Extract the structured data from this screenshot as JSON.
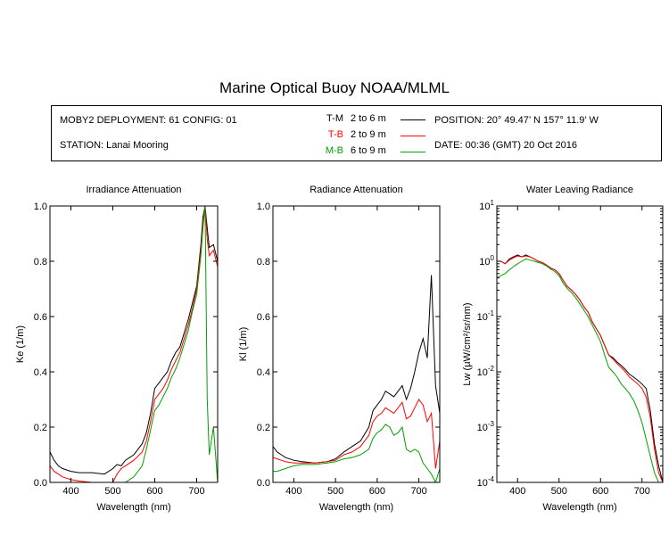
{
  "page": {
    "title": "Marine Optical Buoy NOAA/MLML"
  },
  "info": {
    "deployment": "MOBY2 DEPLOYMENT: 61 CONFIG: 01",
    "station": "STATION: Lanai Mooring",
    "position": "POSITION: 20° 49.47’ N   157° 11.9’ W",
    "date": "DATE: 00:36 (GMT) 20 Oct 2016",
    "legend": [
      {
        "code": "T-M",
        "range": "2 to 6  m",
        "color": "#000000"
      },
      {
        "code": "T-B",
        "range": "2 to 9  m",
        "color": "#ff0000"
      },
      {
        "code": "M-B",
        "range": "6 to 9  m",
        "color": "#00a000"
      }
    ]
  },
  "chart_data": [
    {
      "type": "line",
      "title": "Irradiance Attenuation",
      "xlabel": "Wavelength (nm)",
      "ylabel": "Ke  (1/m)",
      "xlim": [
        350,
        750
      ],
      "ylim": [
        0,
        1.0
      ],
      "xticks": [
        400,
        500,
        600,
        700
      ],
      "yticks": [
        0.0,
        0.2,
        0.4,
        0.6,
        0.8,
        1.0
      ],
      "ytick_labels": [
        "0.0",
        "0.2",
        "0.4",
        "0.6",
        "0.8",
        "1.0"
      ],
      "x": [
        350,
        360,
        370,
        380,
        400,
        420,
        450,
        480,
        500,
        510,
        520,
        530,
        550,
        570,
        580,
        590,
        600,
        610,
        620,
        630,
        640,
        650,
        660,
        670,
        680,
        690,
        700,
        710,
        715,
        720,
        725,
        730,
        740,
        750
      ],
      "series": [
        {
          "name": "T-M",
          "color": "#000000",
          "values": [
            0.11,
            0.08,
            0.06,
            0.05,
            0.04,
            0.035,
            0.035,
            0.03,
            0.05,
            0.065,
            0.06,
            0.08,
            0.1,
            0.14,
            0.18,
            0.25,
            0.34,
            0.36,
            0.38,
            0.4,
            0.44,
            0.47,
            0.49,
            0.54,
            0.59,
            0.65,
            0.71,
            0.86,
            0.96,
            1.0,
            0.92,
            0.85,
            0.86,
            0.8
          ]
        },
        {
          "name": "T-B",
          "color": "#ff0000",
          "values": [
            0.06,
            0.04,
            0.03,
            0.02,
            0.01,
            0.005,
            0.0,
            0.0,
            0.0,
            0.03,
            0.05,
            0.06,
            0.08,
            0.11,
            0.15,
            0.22,
            0.3,
            0.32,
            0.34,
            0.37,
            0.41,
            0.44,
            0.47,
            0.52,
            0.57,
            0.63,
            0.7,
            0.84,
            0.94,
            1.0,
            0.88,
            0.82,
            0.84,
            0.78
          ]
        },
        {
          "name": "M-B",
          "color": "#00a000",
          "values": [
            0.0,
            0.0,
            0.0,
            0.0,
            0.0,
            0.0,
            0.0,
            0.0,
            0.0,
            0.0,
            0.0,
            0.0,
            0.02,
            0.06,
            0.12,
            0.19,
            0.26,
            0.28,
            0.31,
            0.34,
            0.38,
            0.41,
            0.45,
            0.5,
            0.55,
            0.62,
            0.68,
            0.82,
            0.92,
            1.0,
            0.3,
            0.1,
            0.2,
            0.0
          ]
        }
      ]
    },
    {
      "type": "line",
      "title": "Radiance Attenuation",
      "xlabel": "Wavelength (nm)",
      "ylabel": "Kl  (1/m)",
      "xlim": [
        350,
        750
      ],
      "ylim": [
        0,
        1.0
      ],
      "xticks": [
        400,
        500,
        600,
        700
      ],
      "yticks": [
        0.0,
        0.2,
        0.4,
        0.6,
        0.8,
        1.0
      ],
      "ytick_labels": [
        "0.0",
        "0.2",
        "0.4",
        "0.6",
        "0.8",
        "1.0"
      ],
      "x": [
        350,
        360,
        370,
        380,
        400,
        420,
        450,
        480,
        500,
        520,
        540,
        560,
        580,
        590,
        600,
        610,
        620,
        630,
        640,
        650,
        660,
        670,
        680,
        690,
        700,
        710,
        720,
        730,
        740,
        750
      ],
      "series": [
        {
          "name": "T-M",
          "color": "#000000",
          "values": [
            0.13,
            0.11,
            0.1,
            0.09,
            0.08,
            0.075,
            0.07,
            0.075,
            0.085,
            0.11,
            0.13,
            0.15,
            0.2,
            0.26,
            0.28,
            0.3,
            0.33,
            0.32,
            0.31,
            0.33,
            0.35,
            0.3,
            0.34,
            0.4,
            0.47,
            0.52,
            0.45,
            0.75,
            0.35,
            0.25
          ]
        },
        {
          "name": "T-B",
          "color": "#ff0000",
          "values": [
            0.09,
            0.085,
            0.08,
            0.075,
            0.07,
            0.07,
            0.07,
            0.075,
            0.08,
            0.1,
            0.11,
            0.13,
            0.17,
            0.22,
            0.24,
            0.25,
            0.27,
            0.26,
            0.25,
            0.27,
            0.29,
            0.23,
            0.24,
            0.27,
            0.3,
            0.28,
            0.22,
            0.25,
            0.05,
            0.15
          ]
        },
        {
          "name": "M-B",
          "color": "#00a000",
          "values": [
            0.04,
            0.04,
            0.045,
            0.05,
            0.06,
            0.065,
            0.065,
            0.07,
            0.075,
            0.085,
            0.09,
            0.1,
            0.12,
            0.16,
            0.18,
            0.19,
            0.21,
            0.2,
            0.17,
            0.18,
            0.2,
            0.12,
            0.11,
            0.12,
            0.11,
            0.07,
            0.05,
            0.03,
            0.0,
            0.05
          ]
        }
      ]
    },
    {
      "type": "line",
      "title": "Water Leaving Radiance",
      "xlabel": "Wavelength (nm)",
      "ylabel": "Lw  (μW/cm²/sr/nm)",
      "xlim": [
        350,
        750
      ],
      "ylim": [
        0.0001,
        10
      ],
      "yscale": "log",
      "xticks": [
        400,
        500,
        600,
        700
      ],
      "yticks": [
        0.0001,
        0.001,
        0.01,
        0.1,
        1,
        10
      ],
      "ytick_labels": [
        {
          "b": "10",
          "e": "-4"
        },
        {
          "b": "10",
          "e": "-3"
        },
        {
          "b": "10",
          "e": "-2"
        },
        {
          "b": "10",
          "e": "-1"
        },
        {
          "b": "10",
          "e": "0"
        },
        {
          "b": "10",
          "e": "1"
        }
      ],
      "x": [
        350,
        360,
        370,
        380,
        390,
        400,
        410,
        420,
        430,
        440,
        450,
        460,
        470,
        480,
        490,
        500,
        510,
        520,
        530,
        540,
        550,
        560,
        570,
        580,
        590,
        600,
        610,
        620,
        630,
        640,
        650,
        660,
        670,
        680,
        690,
        700,
        710,
        720,
        730,
        740,
        750
      ],
      "series": [
        {
          "name": "T-M",
          "color": "#000000",
          "values": [
            1.0,
            1.0,
            0.9,
            1.1,
            1.2,
            1.3,
            1.2,
            1.3,
            1.2,
            1.1,
            1.0,
            0.95,
            0.85,
            0.75,
            0.7,
            0.6,
            0.45,
            0.35,
            0.3,
            0.25,
            0.2,
            0.15,
            0.12,
            0.08,
            0.06,
            0.045,
            0.03,
            0.02,
            0.018,
            0.015,
            0.013,
            0.011,
            0.009,
            0.008,
            0.007,
            0.006,
            0.005,
            0.002,
            0.0005,
            0.0002,
            0.0001
          ]
        },
        {
          "name": "T-B",
          "color": "#ff0000",
          "values": [
            1.0,
            1.0,
            0.9,
            1.05,
            1.15,
            1.25,
            1.2,
            1.25,
            1.2,
            1.1,
            1.0,
            0.95,
            0.85,
            0.75,
            0.7,
            0.6,
            0.45,
            0.35,
            0.3,
            0.25,
            0.2,
            0.15,
            0.12,
            0.08,
            0.06,
            0.045,
            0.03,
            0.02,
            0.017,
            0.014,
            0.012,
            0.01,
            0.008,
            0.007,
            0.006,
            0.005,
            0.0035,
            0.0015,
            0.0004,
            0.00015,
            0.0001
          ]
        },
        {
          "name": "M-B",
          "color": "#00a000",
          "values": [
            0.5,
            0.55,
            0.6,
            0.7,
            0.8,
            0.9,
            1.0,
            1.1,
            1.05,
            1.0,
            0.95,
            0.9,
            0.82,
            0.72,
            0.65,
            0.55,
            0.4,
            0.32,
            0.27,
            0.22,
            0.17,
            0.13,
            0.1,
            0.07,
            0.05,
            0.035,
            0.02,
            0.012,
            0.01,
            0.008,
            0.006,
            0.005,
            0.004,
            0.003,
            0.002,
            0.0012,
            0.0006,
            0.0003,
            0.00015,
            0.0001,
            0.0001
          ]
        }
      ]
    }
  ]
}
